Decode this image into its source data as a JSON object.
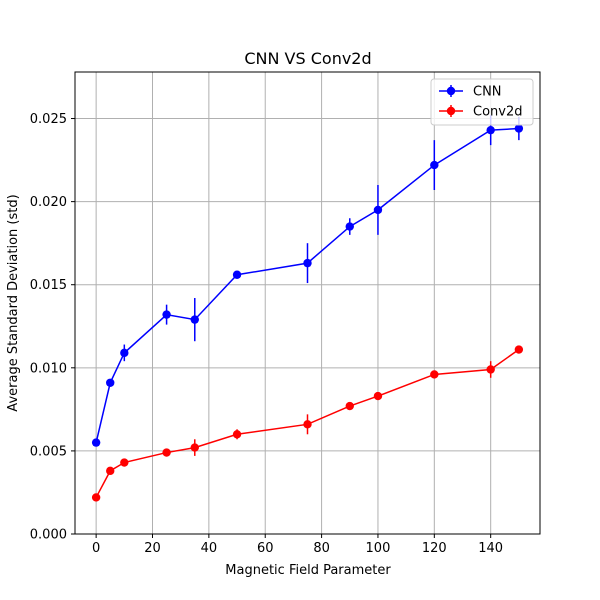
{
  "chart_data": {
    "type": "line",
    "title": "CNN VS Conv2d",
    "xlabel": "Magnetic Field Parameter",
    "ylabel": "Average Standard Deviation (std)",
    "xlim": [
      -7.5,
      157.5
    ],
    "ylim": [
      0.0,
      0.0278
    ],
    "xticks": [
      0,
      20,
      40,
      60,
      80,
      100,
      120,
      140
    ],
    "xtick_labels": [
      "0",
      "20",
      "40",
      "60",
      "80",
      "100",
      "120",
      "140"
    ],
    "yticks": [
      0.0,
      0.005,
      0.01,
      0.015,
      0.02,
      0.025
    ],
    "ytick_labels": [
      "0.000",
      "0.005",
      "0.010",
      "0.015",
      "0.020",
      "0.025"
    ],
    "grid": true,
    "legend_position": "top-right",
    "x": [
      0,
      5,
      10,
      25,
      35,
      50,
      75,
      90,
      100,
      120,
      140,
      150
    ],
    "series": [
      {
        "name": "CNN",
        "color": "#0000ff",
        "values": [
          0.0055,
          0.0091,
          0.0109,
          0.0132,
          0.0129,
          0.0156,
          0.0163,
          0.0185,
          0.0195,
          0.0222,
          0.0243,
          0.0244
        ],
        "errors": [
          0.0,
          0.0,
          0.0005,
          0.0006,
          0.0013,
          0.0,
          0.0012,
          0.0005,
          0.0015,
          0.0015,
          0.0009,
          0.0007
        ]
      },
      {
        "name": "Conv2d",
        "color": "#ff0000",
        "values": [
          0.0022,
          0.0038,
          0.0043,
          0.0049,
          0.0052,
          0.006,
          0.0066,
          0.0077,
          0.0083,
          0.0096,
          0.0099,
          0.0111
        ],
        "errors": [
          0.0,
          0.0,
          0.0,
          0.0,
          0.0005,
          0.0003,
          0.0006,
          0.0,
          0.0,
          0.0,
          0.0005,
          0.0
        ]
      }
    ]
  }
}
